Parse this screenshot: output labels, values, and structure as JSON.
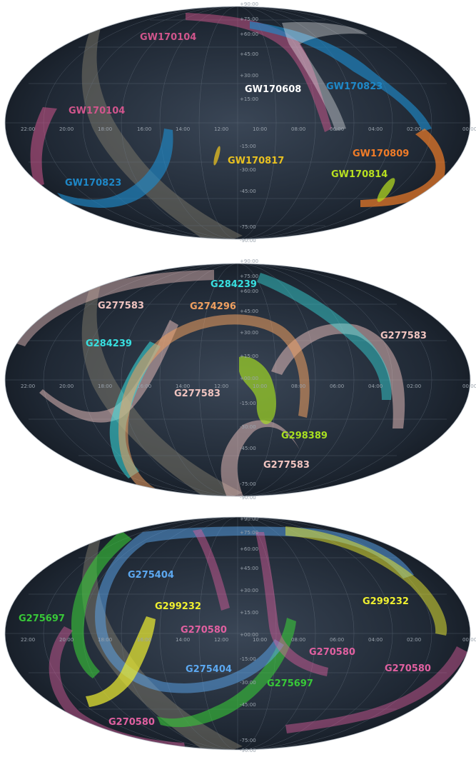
{
  "ra_labels": [
    "22:00",
    "20:00",
    "18:00",
    "16:00",
    "14:00",
    "12:00",
    "10:00",
    "08:00",
    "06:00",
    "04:00",
    "02:00",
    "00:00"
  ],
  "dec_labels": [
    "+90:00",
    "+75:00",
    "+60:00",
    "+45:00",
    "+30:00",
    "+15:00",
    "+00:00",
    "-15:00",
    "-30:00",
    "-45:00",
    "-60:00",
    "-75:00",
    "-90:00"
  ],
  "colors": {
    "GW170104": "#d0558c",
    "GW170823": "#1e88c8",
    "GW170608": "#ffffff",
    "GW170817": "#e8c020",
    "GW170809": "#f07c28",
    "GW170814": "#b8e020",
    "G284239": "#38e0e0",
    "G277583": "#f0c4c0",
    "G274296": "#f0a060",
    "G298389": "#a8e020",
    "G275404": "#5ca8f0",
    "G275697": "#38c838",
    "G299232": "#f0f030",
    "G270580": "#e060a0"
  },
  "panels": [
    {
      "labels": [
        {
          "text": "GW170104",
          "color": "#d0558c"
        },
        {
          "text": "GW170104",
          "color": "#d0558c"
        },
        {
          "text": "GW170608",
          "color": "#ffffff"
        },
        {
          "text": "GW170823",
          "color": "#1e88c8"
        },
        {
          "text": "GW170823",
          "color": "#1e88c8"
        },
        {
          "text": "GW170817",
          "color": "#e8c020"
        },
        {
          "text": "GW170809",
          "color": "#f07c28"
        },
        {
          "text": "GW170814",
          "color": "#b8e020"
        }
      ]
    },
    {
      "labels": [
        {
          "text": "G284239",
          "color": "#38e0e0"
        },
        {
          "text": "G277583",
          "color": "#f0c4c0"
        },
        {
          "text": "G274296",
          "color": "#f0a060"
        },
        {
          "text": "G284239",
          "color": "#38e0e0"
        },
        {
          "text": "G277583",
          "color": "#f0c4c0"
        },
        {
          "text": "G277583",
          "color": "#f0c4c0"
        },
        {
          "text": "G298389",
          "color": "#a8e020"
        },
        {
          "text": "G277583",
          "color": "#f0c4c0"
        }
      ]
    },
    {
      "labels": [
        {
          "text": "G275404",
          "color": "#5ca8f0"
        },
        {
          "text": "G275697",
          "color": "#38c838"
        },
        {
          "text": "G299232",
          "color": "#f0f030"
        },
        {
          "text": "G299232",
          "color": "#f0f030"
        },
        {
          "text": "G270580",
          "color": "#e060a0"
        },
        {
          "text": "G270580",
          "color": "#e060a0"
        },
        {
          "text": "G275404",
          "color": "#5ca8f0"
        },
        {
          "text": "G270580",
          "color": "#e060a0"
        },
        {
          "text": "G275697",
          "color": "#38c838"
        },
        {
          "text": "G270580",
          "color": "#e060a0"
        }
      ]
    }
  ]
}
